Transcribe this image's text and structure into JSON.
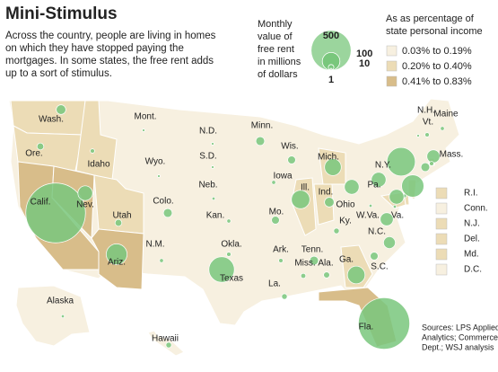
{
  "title": "Mini-Stimulus",
  "description": [
    "Across the country, people are living in homes",
    "on which they have stopped paying the",
    "mortgages. In some states, the free rent adds",
    "up to a sort of stimulus."
  ],
  "bubble_legend": {
    "title": [
      "Monthly",
      "value of",
      "free rent",
      "in millions",
      "of dollars"
    ],
    "values": [
      500,
      100,
      10,
      1
    ]
  },
  "color_legend": {
    "title": [
      "As as percentage of",
      "state personal income"
    ],
    "classes": [
      {
        "label": "0.03% to 0.19%",
        "color": "#f7f0e0"
      },
      {
        "label": "0.20% to 0.40%",
        "color": "#ecdcb6"
      },
      {
        "label": "0.41% to 0.83%",
        "color": "#d8bd8a"
      }
    ]
  },
  "bubble_color": "#79c77c",
  "states": [
    {
      "label": "Wash.",
      "value": 30,
      "class": 1
    },
    {
      "label": "Ore.",
      "value": 15,
      "class": 1
    },
    {
      "label": "Calif.",
      "value": 1150,
      "class": 2
    },
    {
      "label": "Nev.",
      "value": 70,
      "class": 2
    },
    {
      "label": "Idaho",
      "value": 6,
      "class": 1
    },
    {
      "label": "Mont.",
      "value": 2,
      "class": 0
    },
    {
      "label": "Utah",
      "value": 15,
      "class": 1
    },
    {
      "label": "Ariz.",
      "value": 140,
      "class": 2
    },
    {
      "label": "Wyo.",
      "value": 1,
      "class": 0
    },
    {
      "label": "Colo.",
      "value": 25,
      "class": 0
    },
    {
      "label": "N.M.",
      "value": 5,
      "class": 0
    },
    {
      "label": "N.D.",
      "value": 1,
      "class": 0
    },
    {
      "label": "S.D.",
      "value": 1,
      "class": 0
    },
    {
      "label": "Neb.",
      "value": 3,
      "class": 0
    },
    {
      "label": "Kan.",
      "value": 5,
      "class": 0
    },
    {
      "label": "Okla.",
      "value": 6,
      "class": 0
    },
    {
      "label": "Texas",
      "value": 210,
      "class": 0
    },
    {
      "label": "Minn.",
      "value": 25,
      "class": 0
    },
    {
      "label": "Iowa",
      "value": 5,
      "class": 0
    },
    {
      "label": "Mo.",
      "value": 20,
      "class": 0
    },
    {
      "label": "Ark.",
      "value": 6,
      "class": 0
    },
    {
      "label": "La.",
      "value": 10,
      "class": 0
    },
    {
      "label": "Wis.",
      "value": 20,
      "class": 0
    },
    {
      "label": "Ill.",
      "value": 110,
      "class": 1
    },
    {
      "label": "Mich.",
      "value": 90,
      "class": 1
    },
    {
      "label": "Ind.",
      "value": 30,
      "class": 1
    },
    {
      "label": "Ohio",
      "value": 70,
      "class": 0
    },
    {
      "label": "Ky.",
      "value": 10,
      "class": 0
    },
    {
      "label": "Tenn.",
      "value": 25,
      "class": 0
    },
    {
      "label": "Miss.",
      "value": 8,
      "class": 0
    },
    {
      "label": "Ala.",
      "value": 12,
      "class": 0
    },
    {
      "label": "Ga.",
      "value": 100,
      "class": 1
    },
    {
      "label": "Fla.",
      "value": 850,
      "class": 2
    },
    {
      "label": "S.C.",
      "value": 20,
      "class": 0
    },
    {
      "label": "N.C.",
      "value": 45,
      "class": 0
    },
    {
      "label": "Va.",
      "value": 55,
      "class": 0
    },
    {
      "label": "W.Va.",
      "value": 3,
      "class": 0
    },
    {
      "label": "Pa.",
      "value": 70,
      "class": 0
    },
    {
      "label": "N.Y.",
      "value": 260,
      "class": 0
    },
    {
      "label": "Maine",
      "value": 5,
      "class": 0
    },
    {
      "label": "N.H.",
      "value": 6,
      "class": 0
    },
    {
      "label": "Vt.",
      "value": 2,
      "class": 0
    },
    {
      "label": "Mass.",
      "value": 55,
      "class": 0
    },
    {
      "label": "R.I.",
      "value": 6,
      "class": 1
    },
    {
      "label": "Conn.",
      "value": 25,
      "class": 0
    },
    {
      "label": "N.J.",
      "value": 160,
      "class": 1
    },
    {
      "label": "Del.",
      "value": 4,
      "class": 1
    },
    {
      "label": "Md.",
      "value": 70,
      "class": 1
    },
    {
      "label": "D.C.",
      "value": 3,
      "class": 0
    },
    {
      "label": "Alaska",
      "value": 3,
      "class": 0
    },
    {
      "label": "Hawaii",
      "value": 10,
      "class": 0
    }
  ],
  "source": [
    "Sources: LPS Applied",
    "Analytics; Commerce",
    "Dept.; WSJ analysis"
  ]
}
